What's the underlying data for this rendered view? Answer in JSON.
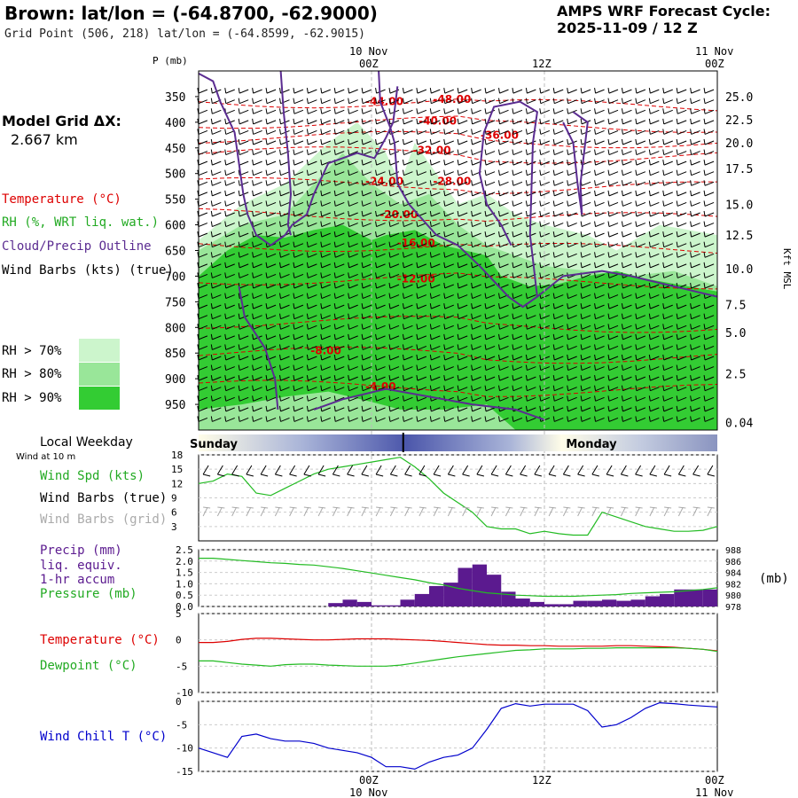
{
  "header": {
    "title": "Brown:  lat/lon = (-64.8700, -62.9000)",
    "grid_point": "Grid Point (506, 218) lat/lon = (-64.8599, -62.9015)",
    "cycle_label": "AMPS WRF Forecast Cycle:",
    "cycle_value": "2025-11-09 / 12  Z"
  },
  "legend": {
    "model_grid": "Model Grid ΔX:",
    "model_grid_value": "2.667 km",
    "temperature": "Temperature (°C)",
    "rh": "RH (%, WRT liq. wat.)",
    "cloud": "Cloud/Precip Outline",
    "wind": "Wind Barbs (kts) (true)",
    "rh70": "RH > 70%",
    "rh80": "RH > 80%",
    "rh90": "RH > 90%",
    "local_weekday": "Local Weekday",
    "wind_at": "Wind at 10 m",
    "wind_spd": "Wind Spd (kts)",
    "wind_barbs_true": "Wind Barbs (true)",
    "wind_barbs_grid": "Wind Barbs (grid)",
    "precip1": "Precip (mm)",
    "precip2": "liq. equiv.",
    "precip3": "1-hr accum",
    "pressure": "Pressure (mb)",
    "pressure_unit": "(mb)",
    "temp2": "Temperature (°C)",
    "dewpoint": "Dewpoint (°C)",
    "windchill": "Wind Chill T (°C)"
  },
  "colors": {
    "temperature": "#dd0000",
    "rh": "#22bb22",
    "cloud": "#5b2c91",
    "windchill": "#0000cc",
    "rh70": "#ccf5cc",
    "rh80": "#99e699",
    "rh90": "#33cc33",
    "precip": "#5b1a8f",
    "gridwind": "#aaaaaa"
  },
  "chart_data": [
    {
      "type": "heatmap",
      "name": "cross-section",
      "top_time_labels": [
        {
          "date": "10 Nov",
          "time": "00Z",
          "hour": 12
        },
        {
          "time": "12Z",
          "hour": 24
        },
        {
          "date": "11 Nov",
          "time": "00Z",
          "hour": 36
        }
      ],
      "xlim_hours": [
        0,
        36
      ],
      "xlabel": "",
      "ylabel": "P (mb)",
      "pressure_ticks": [
        350,
        400,
        450,
        500,
        550,
        600,
        650,
        700,
        750,
        800,
        850,
        900,
        950
      ],
      "ylim_mb": [
        300,
        1000
      ],
      "height_label": "Kft MSL",
      "height_ticks": [
        "25.0",
        "22.5",
        "20.0",
        "17.5",
        "15.0",
        "12.5",
        "10.0",
        "7.5",
        "5.0",
        "2.5",
        "0.04"
      ],
      "height_tick_p": [
        350,
        395,
        440,
        490,
        560,
        620,
        685,
        755,
        810,
        890,
        985
      ],
      "temperature_contour_labels": [
        {
          "text": "-48.00",
          "t": 17.5,
          "p": 355
        },
        {
          "text": "-44.00",
          "t": 12.8,
          "p": 360
        },
        {
          "text": "-40.00",
          "t": 16.5,
          "p": 398
        },
        {
          "text": "-36.00",
          "t": 20.8,
          "p": 425
        },
        {
          "text": "-32.00",
          "t": 16.1,
          "p": 455
        },
        {
          "text": "-28.00",
          "t": 17.5,
          "p": 515
        },
        {
          "text": "-24.00",
          "t": 12.8,
          "p": 515
        },
        {
          "text": "-20.00",
          "t": 13.8,
          "p": 580
        },
        {
          "text": "-16.00",
          "t": 15.0,
          "p": 635
        },
        {
          "text": "-12.00",
          "t": 15.0,
          "p": 705
        },
        {
          "text": "-8.00",
          "t": 9.0,
          "p": 845
        },
        {
          "text": "-4.00",
          "t": 12.8,
          "p": 915
        }
      ]
    },
    {
      "type": "line",
      "name": "wind speed",
      "xlim_hours": [
        0,
        36
      ],
      "y_ticks": [
        18,
        15,
        12,
        9,
        6,
        3
      ],
      "ylim": [
        0,
        18
      ],
      "series": [
        {
          "name": "Wind Spd (kts)",
          "values": [
            12,
            12.5,
            14,
            13.5,
            10,
            9.5,
            11,
            12.5,
            14,
            15,
            15.5,
            16,
            16.5,
            17,
            17.5,
            15.5,
            13,
            10,
            8,
            6,
            3,
            2.5,
            2.5,
            1.5,
            2,
            1.5,
            1.2,
            1.2,
            6,
            5,
            4,
            3,
            2.5,
            2,
            2,
            2.2,
            3
          ]
        }
      ],
      "weekday_band": [
        "Sunday",
        "Monday"
      ]
    },
    {
      "type": "bar",
      "name": "precipitation and pressure",
      "xlim_hours": [
        0,
        36
      ],
      "left_ticks": [
        "2.5",
        "2.0",
        "1.5",
        "1.0",
        "0.5",
        "0.0"
      ],
      "right_ticks": [
        "988",
        "986",
        "984",
        "982",
        "980",
        "978"
      ],
      "series": [
        {
          "name": "Precip (mm)",
          "values": [
            0,
            0,
            0,
            0,
            0,
            0,
            0,
            0,
            0,
            0.15,
            0.3,
            0.2,
            0.05,
            0.05,
            0.3,
            0.55,
            0.9,
            1.05,
            1.7,
            1.85,
            1.4,
            0.65,
            0.35,
            0.2,
            0.1,
            0.1,
            0.25,
            0.25,
            0.3,
            0.25,
            0.3,
            0.45,
            0.55,
            0.75,
            0.75,
            0.75
          ]
        },
        {
          "name": "Pressure (mb)",
          "values": [
            986.5,
            986.5,
            986.3,
            986.1,
            985.9,
            985.7,
            985.6,
            985.4,
            985.3,
            985,
            984.7,
            984.3,
            983.9,
            983.5,
            983.1,
            982.7,
            982.2,
            981.8,
            981.2,
            980.8,
            980.4,
            980.2,
            980,
            979.9,
            979.8,
            979.8,
            979.8,
            979.9,
            980,
            980.1,
            980.3,
            980.4,
            980.5,
            980.6,
            980.8,
            981,
            981.3
          ]
        }
      ]
    },
    {
      "type": "line",
      "name": "temperature and dewpoint",
      "xlim_hours": [
        0,
        36
      ],
      "y_ticks": [
        "5",
        "0",
        "-5",
        "-10"
      ],
      "ylim": [
        -10,
        5
      ],
      "series": [
        {
          "name": "Temperature (°C)",
          "values": [
            -0.5,
            -0.5,
            -0.3,
            0.1,
            0.3,
            0.3,
            0.2,
            0.1,
            0,
            0,
            0.1,
            0.2,
            0.2,
            0.2,
            0.1,
            0,
            -0.1,
            -0.3,
            -0.5,
            -0.7,
            -0.9,
            -1,
            -1,
            -1.1,
            -1.1,
            -1.2,
            -1.2,
            -1.2,
            -1.2,
            -1.1,
            -1.1,
            -1.2,
            -1.3,
            -1.4,
            -1.6,
            -1.8,
            -2.1
          ]
        },
        {
          "name": "Dewpoint (°C)",
          "values": [
            -4,
            -4,
            -4.3,
            -4.6,
            -4.8,
            -5,
            -4.7,
            -4.6,
            -4.6,
            -4.8,
            -4.9,
            -5,
            -5,
            -5,
            -4.8,
            -4.4,
            -4,
            -3.6,
            -3.2,
            -2.9,
            -2.6,
            -2.3,
            -2,
            -1.9,
            -1.7,
            -1.7,
            -1.7,
            -1.6,
            -1.6,
            -1.5,
            -1.5,
            -1.5,
            -1.5,
            -1.5,
            -1.6,
            -1.8,
            -2.2
          ]
        }
      ]
    },
    {
      "type": "line",
      "name": "wind chill",
      "xlim_hours": [
        0,
        36
      ],
      "y_ticks": [
        "0",
        "-5",
        "-10",
        "-15"
      ],
      "ylim": [
        -15,
        0
      ],
      "bottom_time_labels": [
        {
          "time": "00Z",
          "date": "10 Nov",
          "hour": 12
        },
        {
          "time": "12Z",
          "hour": 24
        },
        {
          "time": "00Z",
          "date": "11 Nov",
          "hour": 36
        }
      ],
      "series": [
        {
          "name": "Wind Chill T (°C)",
          "values": [
            -10,
            -11,
            -12,
            -7.5,
            -7,
            -8,
            -8.5,
            -8.5,
            -9,
            -10,
            -10.5,
            -11,
            -12,
            -14,
            -14,
            -14.5,
            -13,
            -12,
            -11.5,
            -10,
            -6,
            -1.5,
            -0.5,
            -1,
            -0.6,
            -0.6,
            -0.6,
            -2,
            -5.5,
            -5,
            -3.5,
            -1.5,
            -0.3,
            -0.5,
            -0.8,
            -1,
            -1.2
          ]
        }
      ]
    }
  ]
}
